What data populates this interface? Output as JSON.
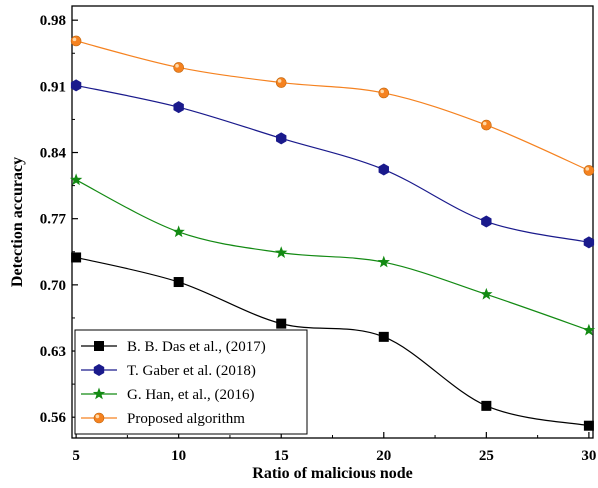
{
  "chart_data": {
    "type": "line",
    "title": "",
    "xlabel": "Ratio of malicious  node",
    "ylabel": "Detection accuracy",
    "x": [
      5,
      10,
      15,
      20,
      25,
      30
    ],
    "xticks": [
      "5",
      "10",
      "15",
      "20",
      "25",
      "30"
    ],
    "yticks": [
      "0.56",
      "0.63",
      "0.70",
      "0.77",
      "0.84",
      "0.91",
      "0.98"
    ],
    "xlim": [
      4.8,
      30.2
    ],
    "ylim": [
      0.538,
      0.995
    ],
    "grid": false,
    "legend_position": "bottom-left",
    "series": [
      {
        "name": "B. B. Das et al., (2017)",
        "marker": "square",
        "color": "#000000",
        "values": [
          0.729,
          0.703,
          0.659,
          0.645,
          0.572,
          0.551
        ]
      },
      {
        "name": "T. Gaber et al. (2018)",
        "marker": "hexagon",
        "color": "#1a1a8c",
        "values": [
          0.911,
          0.888,
          0.855,
          0.822,
          0.767,
          0.745
        ]
      },
      {
        "name": "G. Han, et al., (2016)",
        "marker": "star",
        "color": "#138a13",
        "values": [
          0.811,
          0.756,
          0.734,
          0.724,
          0.69,
          0.652
        ]
      },
      {
        "name": "Proposed algorithm",
        "marker": "circle",
        "color": "#f58220",
        "values": [
          0.958,
          0.93,
          0.914,
          0.903,
          0.869,
          0.821
        ]
      }
    ]
  }
}
